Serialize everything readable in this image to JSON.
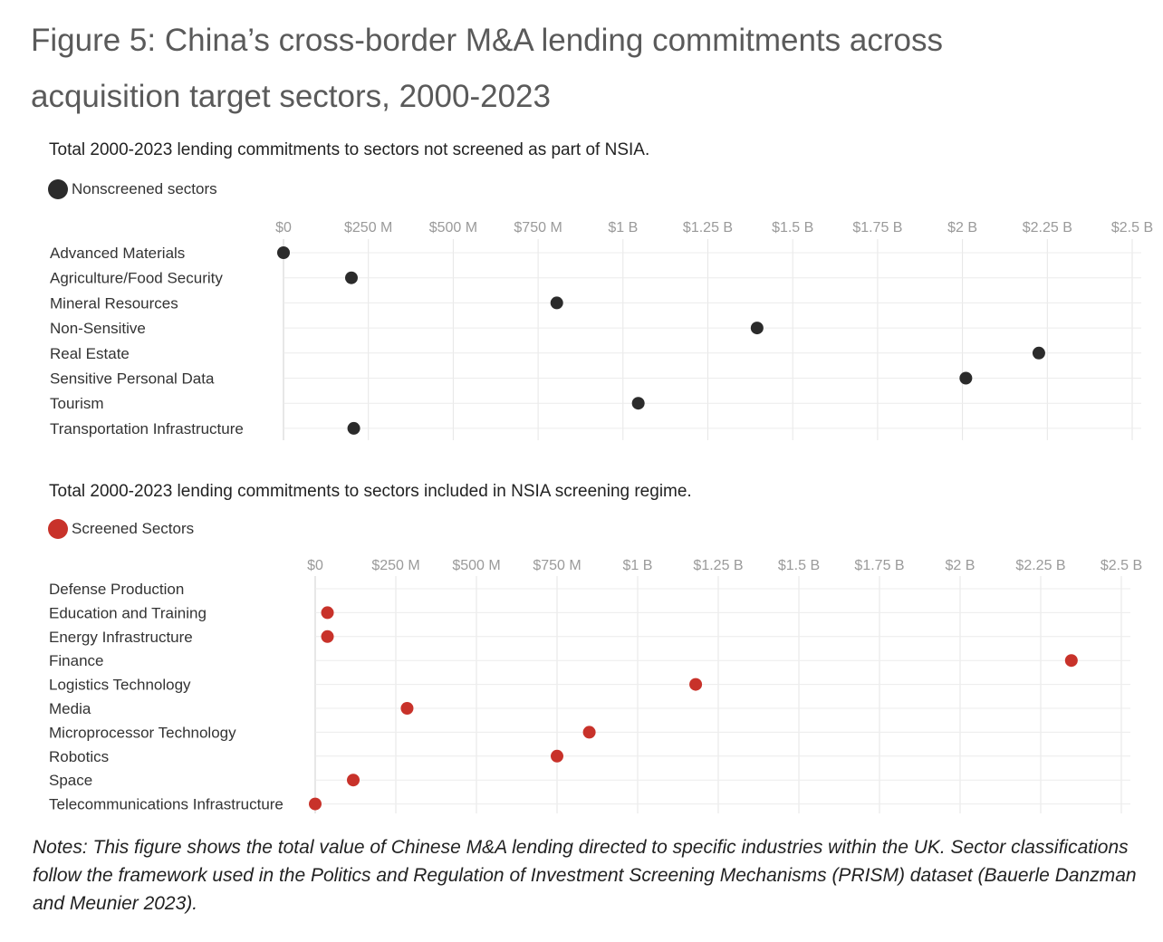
{
  "figure": {
    "title_lines": [
      "Figure 5: China’s cross-border M&A lending commitments across",
      "acquisition target sectors, 2000-2023"
    ],
    "notes": "Notes: This figure shows the total value of Chinese M&A lending directed to specific industries within the UK. Sector classifications follow the framework used in the Politics and Regulation of Investment Screening Mechanisms (PRISM) dataset (Bauerle Danzman and Meunier 2023)."
  },
  "chart_data": [
    {
      "type": "scatter",
      "title": "Total 2000-2023 lending commitments to sectors not screened as part of NSIA.",
      "legend": {
        "label": "Nonscreened sectors",
        "color": "#2b2b2b",
        "placement": "top-left"
      },
      "x_unit": "USD",
      "xlim": [
        0,
        2500000000
      ],
      "x_ticks": [
        0,
        250000000,
        500000000,
        750000000,
        1000000000,
        1250000000,
        1500000000,
        1750000000,
        2000000000,
        2250000000,
        2500000000
      ],
      "x_tick_labels": [
        "$0",
        "$250 M",
        "$500 M",
        "$750 M",
        "$1 B",
        "$1.25 B",
        "$1.5 B",
        "$1.75 B",
        "$2 B",
        "$2.25 B",
        "$2.5 B"
      ],
      "grid": true,
      "categories": [
        "Advanced Materials",
        "Agriculture/Food Security",
        "Mineral Resources",
        "Non-Sensitive",
        "Real Estate",
        "Sensitive Personal Data",
        "Tourism",
        "Transportation Infrastructure"
      ],
      "values": [
        0,
        200000000,
        805000000,
        1395000000,
        2225000000,
        2010000000,
        1045000000,
        207000000
      ]
    },
    {
      "type": "scatter",
      "title": "Total 2000-2023 lending commitments to sectors included in NSIA screening regime.",
      "legend": {
        "label": "Screened Sectors",
        "color": "#c8322a",
        "placement": "top-left"
      },
      "x_unit": "USD",
      "xlim": [
        0,
        2500000000
      ],
      "x_ticks": [
        0,
        250000000,
        500000000,
        750000000,
        1000000000,
        1250000000,
        1500000000,
        1750000000,
        2000000000,
        2250000000,
        2500000000
      ],
      "x_tick_labels": [
        "$0",
        "$250 M",
        "$500 M",
        "$750 M",
        "$1 B",
        "$1.25 B",
        "$1.5 B",
        "$1.75 B",
        "$2 B",
        "$2.25 B",
        "$2.5 B"
      ],
      "grid": true,
      "categories": [
        "Defense Production",
        "Education and Training",
        "Energy Infrastructure",
        "Finance",
        "Logistics Technology",
        "Media",
        "Microprocessor Technology",
        "Robotics",
        "Space",
        "Telecommunications Infrastructure"
      ],
      "values": [
        null,
        38000000,
        38000000,
        2345000000,
        1180000000,
        285000000,
        850000000,
        750000000,
        118000000,
        0
      ]
    }
  ]
}
